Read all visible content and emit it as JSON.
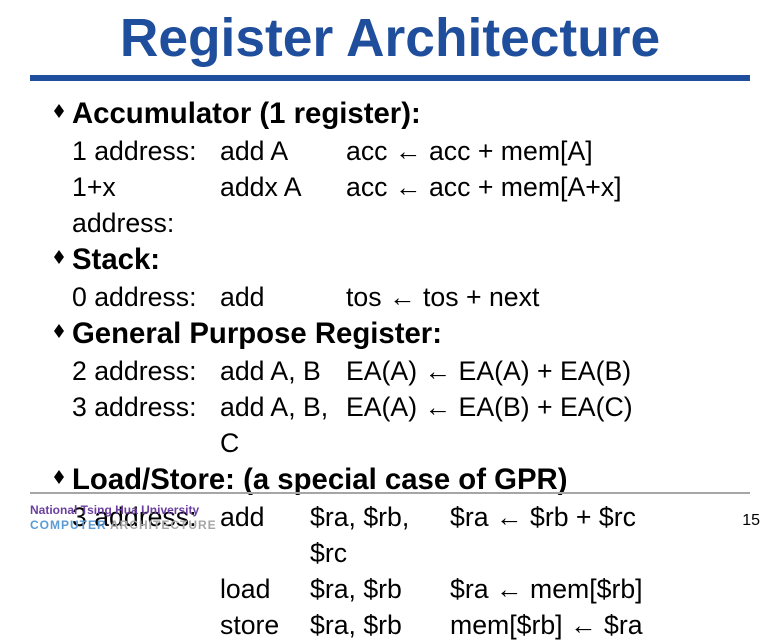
{
  "title": {
    "text": "Register Architecture",
    "color": "#1f4e9c",
    "fontsize_pt": 40,
    "underline_color": "#1f4e9c"
  },
  "body": {
    "heading_fontsize_pt": 22,
    "row_fontsize_pt": 20,
    "text_color": "#000000",
    "col_widths": {
      "label": "148px",
      "mnemonic": "126px"
    },
    "ls_col_widths": {
      "label": "148px",
      "mnemonic": "90px",
      "args": "140px"
    }
  },
  "sections": [
    {
      "heading": "Accumulator (1 register):",
      "rows": [
        {
          "label": "1 address:",
          "mnemonic": "add A",
          "semantics": "acc ← acc + mem[A]"
        },
        {
          "label": "1+x address:",
          "mnemonic": "addx A",
          "semantics": "acc ← acc + mem[A+x]"
        }
      ]
    },
    {
      "heading": "Stack:",
      "rows": [
        {
          "label": "0 address:",
          "mnemonic": "add",
          "semantics": "tos ← tos + next"
        }
      ]
    },
    {
      "heading": "General Purpose Register:",
      "rows": [
        {
          "label": "2 address:",
          "mnemonic": "add A, B",
          "semantics": "EA(A) ← EA(A) + EA(B)"
        },
        {
          "label": "3 address:",
          "mnemonic": "add A, B, C",
          "semantics": "EA(A) ← EA(B) + EA(C)"
        }
      ]
    }
  ],
  "loadstore": {
    "heading": "Load/Store: (a special case of GPR)",
    "rows": [
      {
        "label": "3 address:",
        "mnemonic": "add",
        "args": "$ra, $rb, $rc",
        "semantics": "$ra ← $rb + $rc"
      },
      {
        "label": "",
        "mnemonic": "load",
        "args": "$ra, $rb",
        "semantics": "$ra ← mem[$rb]"
      },
      {
        "label": "",
        "mnemonic": "store",
        "args": "$ra, $rb",
        "semantics": "mem[$rb] ← $ra"
      }
    ]
  },
  "footer": {
    "line_color": "#a6a6a6",
    "university": "National Tsing Hua University",
    "dept1": "COMPUTER",
    "dept2": "ARCHITECTURE",
    "page_number": "15"
  }
}
